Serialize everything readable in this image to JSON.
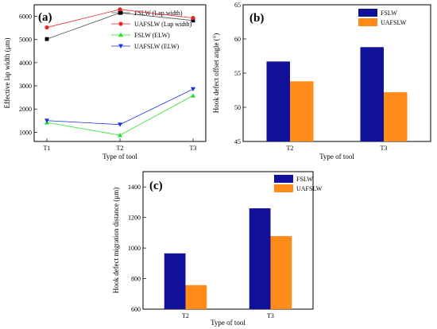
{
  "chart_data": [
    {
      "panel": "(a)",
      "type": "line",
      "categories": [
        "T1",
        "T2",
        "T3"
      ],
      "xlabel": "Type of tool",
      "ylabel": "Effective lap width (μm)",
      "ylim": [
        600,
        6500
      ],
      "yticks": [
        1000,
        2000,
        3000,
        4000,
        5000,
        6000
      ],
      "legend_position": "top-right",
      "series": [
        {
          "name": "FSLW (Lap width)",
          "color": "#000000",
          "marker": "square",
          "values": [
            5020,
            6150,
            5820
          ]
        },
        {
          "name": "UAFSLW (Lap width)",
          "color": "#e8262a",
          "marker": "circle",
          "values": [
            5520,
            6300,
            5930
          ]
        },
        {
          "name": "FSLW (ELW)",
          "color": "#22e022",
          "marker": "triangle-up",
          "values": [
            1420,
            870,
            2580
          ]
        },
        {
          "name": "UAFSLW (ELW)",
          "color": "#1a2fe8",
          "marker": "triangle-down",
          "values": [
            1500,
            1330,
            2860
          ]
        }
      ]
    },
    {
      "panel": "(b)",
      "type": "bar",
      "categories": [
        "T2",
        "T3"
      ],
      "xlabel": "Type of tool",
      "ylabel": "Hook defect offset angle (°)",
      "ylim": [
        45,
        65
      ],
      "yticks": [
        45,
        50,
        55,
        60,
        65
      ],
      "legend_position": "top-right",
      "series": [
        {
          "name": "FSLW",
          "color": "#10109a",
          "values": [
            56.7,
            58.8
          ]
        },
        {
          "name": "UAFSLW",
          "color": "#ff8c1a",
          "values": [
            53.8,
            52.2
          ]
        }
      ]
    },
    {
      "panel": "(c)",
      "type": "bar",
      "categories": [
        "T2",
        "T3"
      ],
      "xlabel": "Type of tool",
      "ylabel": "Hook defect migration distance (μm)",
      "ylim": [
        600,
        1500
      ],
      "yticks": [
        600,
        800,
        1000,
        1200,
        1400
      ],
      "legend_position": "top-right",
      "series": [
        {
          "name": "FSLW",
          "color": "#10109a",
          "values": [
            965,
            1260
          ]
        },
        {
          "name": "UAFSLW",
          "color": "#ff8c1a",
          "values": [
            757,
            1078
          ]
        }
      ]
    }
  ]
}
